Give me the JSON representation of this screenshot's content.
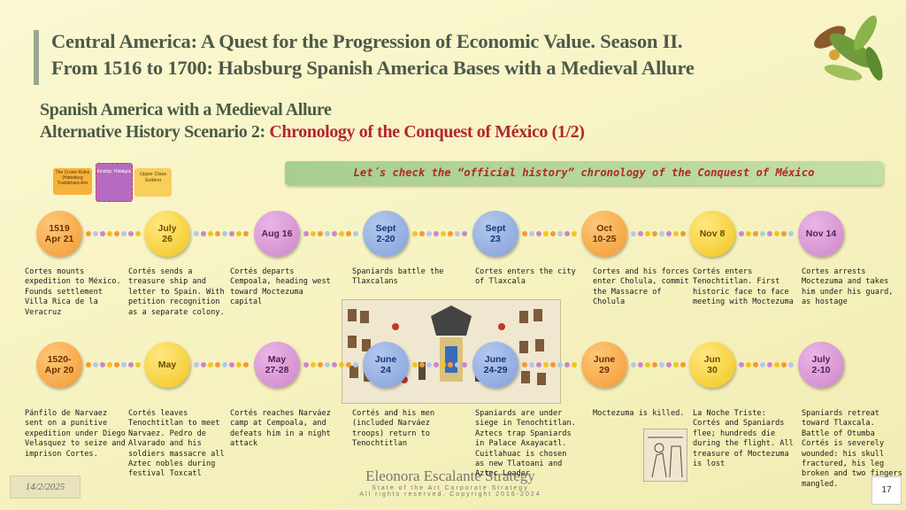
{
  "title": {
    "line1": "Central America:  A Quest for the Progression of Economic Value. Season II.",
    "line2": "From 1516 to 1700: Habsburg Spanish America Bases with a Medieval Allure"
  },
  "subtitle": {
    "line1": "Spanish America with a Medieval Allure",
    "line2_prefix": "Alternative History Scenario 2: ",
    "line2_highlight": "Chronology of the Conquest of México (1/2)"
  },
  "banner": "Let´s check the “official history” chronology of the Conquest of México",
  "mini_diagram": {
    "left": "The Crown Rules (Habsburg Trastámara Aris",
    "middle": "Kinship: Hidalgos",
    "right": "Upper Class Settlers"
  },
  "timeline_row1": [
    {
      "date": "1519\nApr 21",
      "color": "orange",
      "text": "Cortes mounts expedition to México. Founds settlement Villa Rica de la Veracruz"
    },
    {
      "date": "July\n26",
      "color": "yellow",
      "text": "Cortés sends a treasure ship and letter to Spain. With petition recognition as a separate colony."
    },
    {
      "date": "Aug 16",
      "color": "pink",
      "text": "Cortés departs Cempoala, heading west toward Moctezuma capital"
    },
    {
      "date": "Sept\n2-20",
      "color": "blue",
      "text": "Spaniards battle the Tlaxcalans"
    },
    {
      "date": "Sept\n23",
      "color": "blue",
      "text": "Cortes enters the city of Tlaxcala"
    },
    {
      "date": "Oct\n10-25",
      "color": "orange",
      "text": "Cortes and his forces enter Cholula, commit the Massacre of Cholula"
    },
    {
      "date": "Nov 8",
      "color": "yellow",
      "text": "Cortés enters Tenochtitlan. First historic face to face meeting with Moctezuma"
    },
    {
      "date": "Nov 14",
      "color": "pink",
      "text": "Cortes arrests Moctezuma and takes him under his guard, as hostage"
    }
  ],
  "timeline_row2": [
    {
      "date": "1520-\nApr 20",
      "color": "orange",
      "text": "Pánfilo de Narvaez sent on a punitive expedition under Diego Velasquez to seize and imprison Cortes."
    },
    {
      "date": "May",
      "color": "yellow",
      "text": "Cortés leaves Tenochtitlan to meet Narvaez. Pedro de Alvarado and his soldiers massacre all Aztec nobles during festival Toxcatl"
    },
    {
      "date": "May\n27-28",
      "color": "pink",
      "text": "Cortés reaches Narváez camp at Cempoala, and defeats him in a night attack"
    },
    {
      "date": "June\n24",
      "color": "blue",
      "text": "Cortés and his men (included Narváez troops) return to Tenochtitlan"
    },
    {
      "date": "June\n24-29",
      "color": "blue",
      "text": "Spaniards are under siege in Tenochtitlan. Aztecs trap Spaniards in Palace Axayacatl. Cuitlahuac is chosen as new Tlatoani and Aztec Leader"
    },
    {
      "date": "June\n29",
      "color": "orange",
      "text": "Moctezuma is killed."
    },
    {
      "date": "Jun\n30",
      "color": "yellow",
      "text": "La Noche Triste: Cortés and Spaniards flee; hundreds die during the flight. All treasure of Moctezuma is lost"
    },
    {
      "date": "July\n2-10",
      "color": "pink",
      "text": "Spaniards retreat toward Tlaxcala. Battle of Otumba Cortés is severely wounded: his skull fractured, his leg broken and two fingers mangled."
    }
  ],
  "footer": {
    "date": "14/2/2025",
    "brand": "Eleonora Escalante Strategy",
    "tagline": "State of the Art Corporate Strategy",
    "copyright": "All rights reserved. Copyright 2016-2024",
    "page": "17"
  },
  "colors": {
    "orange": "#f29a34",
    "yellow": "#f2c51c",
    "pink": "#cd86c8",
    "blue": "#86a0d9",
    "accent_red": "#b3262f",
    "banner_green": "#a6cf8f"
  }
}
